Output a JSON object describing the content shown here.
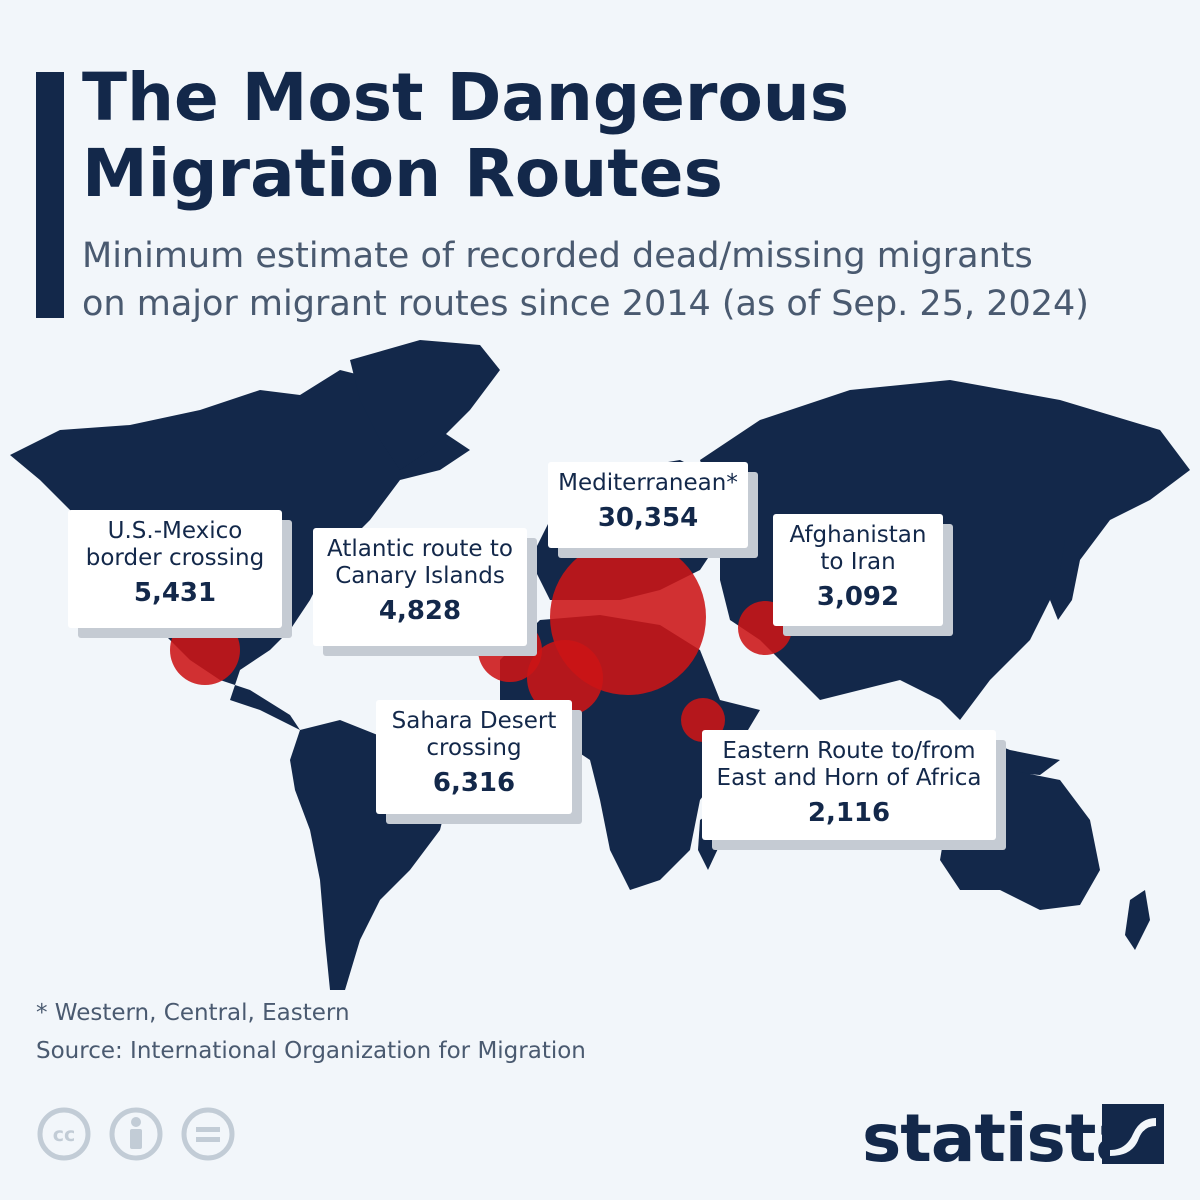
{
  "header": {
    "title_line1": "The Most Dangerous",
    "title_line2": "Migration Routes",
    "subtitle_line1": "Minimum estimate of recorded dead/missing migrants",
    "subtitle_line2": "on major migrant routes since 2014 (as of Sep. 25, 2024)"
  },
  "routes": [
    {
      "label": "U.S.-Mexico\nborder crossing",
      "value": "5,431"
    },
    {
      "label": "Atlantic route to\nCanary Islands",
      "value": "4,828"
    },
    {
      "label": "Mediterranean*",
      "value": "30,354"
    },
    {
      "label": "Afghanistan\nto Iran",
      "value": "3,092"
    },
    {
      "label": "Sahara Desert\ncrossing",
      "value": "6,316"
    },
    {
      "label": "Eastern Route to/from\nEast and Horn of Africa",
      "value": "2,116"
    }
  ],
  "colors": {
    "land": "#13284a",
    "bubble": "#cc1416",
    "background": "#f2f6fa"
  },
  "footer": {
    "footnote": "* Western, Central, Eastern",
    "source": "Source: International Organization for Migration",
    "brand": "statista",
    "license_icons": [
      "cc-icon",
      "attribution-icon",
      "no-derivatives-icon"
    ]
  }
}
